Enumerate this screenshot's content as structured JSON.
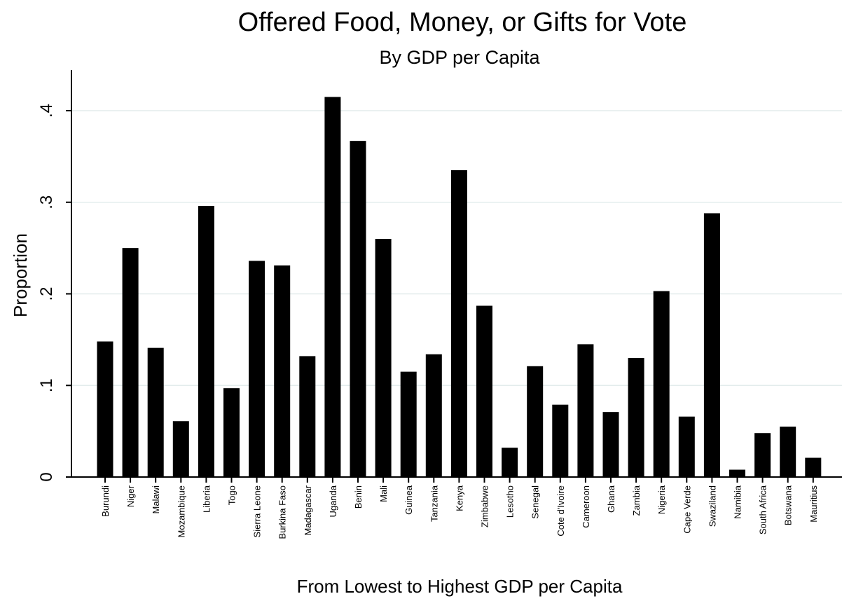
{
  "chart_data": {
    "type": "bar",
    "title": "Offered Food, Money, or Gifts for Vote",
    "subtitle": "By GDP per Capita",
    "xlabel": "From Lowest to Highest GDP per Capita",
    "ylabel": "Proportion",
    "ylim": [
      0,
      0.44
    ],
    "yticks": [
      0,
      0.1,
      0.2,
      0.3,
      0.4
    ],
    "ytick_labels": [
      "0",
      ".1",
      ".2",
      ".3",
      ".4"
    ],
    "grid": true,
    "colors": {
      "bar": "#000000",
      "grid": "#e3ecec"
    },
    "categories": [
      "Burundi",
      "Niger",
      "Malawi",
      "Mozambique",
      "Liberia",
      "Togo",
      "Sierra Leone",
      "Burkina Faso",
      "Madagascar",
      "Uganda",
      "Benin",
      "Mali",
      "Guinea",
      "Tanzania",
      "Kenya",
      "Zimbabwe",
      "Lesotho",
      "Senegal",
      "Cote d'Ivoire",
      "Cameroon",
      "Ghana",
      "Zambia",
      "Nigeria",
      "Cape Verde",
      "Swaziland",
      "Namibia",
      "South Africa",
      "Botswana",
      "Mauritius"
    ],
    "values": [
      0.148,
      0.25,
      0.141,
      0.061,
      0.296,
      0.097,
      0.236,
      0.231,
      0.132,
      0.415,
      0.367,
      0.26,
      0.115,
      0.134,
      0.335,
      0.187,
      0.032,
      0.121,
      0.079,
      0.145,
      0.071,
      0.13,
      0.203,
      0.066,
      0.288,
      0.008,
      0.048,
      0.055,
      0.021
    ]
  }
}
